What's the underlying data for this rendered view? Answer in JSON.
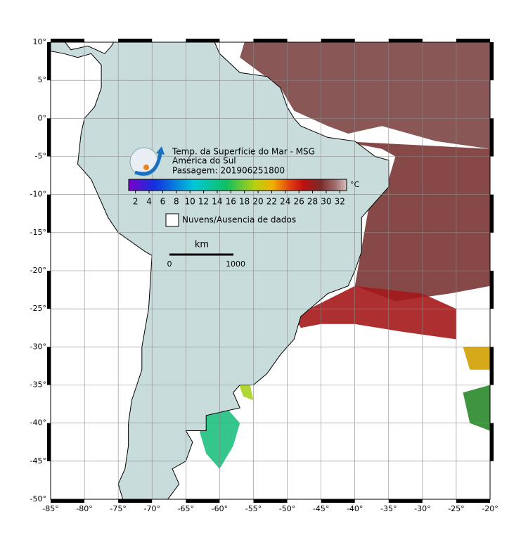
{
  "map": {
    "title": "Temp. da Superfície do Mar - MSG",
    "region": "América do Sul",
    "pass": "Passagem: 201906251800",
    "lat_ticks": [
      {
        "value": 10,
        "label": "10°"
      },
      {
        "value": 5,
        "label": "5°"
      },
      {
        "value": 0,
        "label": "0°"
      },
      {
        "value": -5,
        "label": "-5°"
      },
      {
        "value": -10,
        "label": "-10°"
      },
      {
        "value": -15,
        "label": "-15°"
      },
      {
        "value": -20,
        "label": "-20°"
      },
      {
        "value": -25,
        "label": "-25°"
      },
      {
        "value": -30,
        "label": "-30°"
      },
      {
        "value": -35,
        "label": "-35°"
      },
      {
        "value": -40,
        "label": "-40°"
      },
      {
        "value": -45,
        "label": "-45°"
      },
      {
        "value": -50,
        "label": "-50°"
      }
    ],
    "lon_ticks": [
      {
        "value": -85,
        "label": "-85°"
      },
      {
        "value": -80,
        "label": "-80°"
      },
      {
        "value": -75,
        "label": "-75°"
      },
      {
        "value": -70,
        "label": "-70°"
      },
      {
        "value": -65,
        "label": "-65°"
      },
      {
        "value": -60,
        "label": "-60°"
      },
      {
        "value": -55,
        "label": "-55°"
      },
      {
        "value": -50,
        "label": "-50°"
      },
      {
        "value": -45,
        "label": "-45°"
      },
      {
        "value": -40,
        "label": "-40°"
      },
      {
        "value": -35,
        "label": "-35°"
      },
      {
        "value": -30,
        "label": "-30°"
      },
      {
        "value": -25,
        "label": "-25°"
      },
      {
        "value": -20,
        "label": "-20°"
      }
    ],
    "colorbar": {
      "unit": "°C",
      "range": [
        1,
        33
      ],
      "ticks": [
        2,
        4,
        6,
        8,
        10,
        12,
        14,
        16,
        18,
        20,
        22,
        24,
        26,
        28,
        30,
        32
      ]
    },
    "legend": "Nuvens/Ausencia de dados",
    "scale_bar": {
      "unit": "km",
      "ticks": [
        "0",
        "1000"
      ]
    }
  }
}
